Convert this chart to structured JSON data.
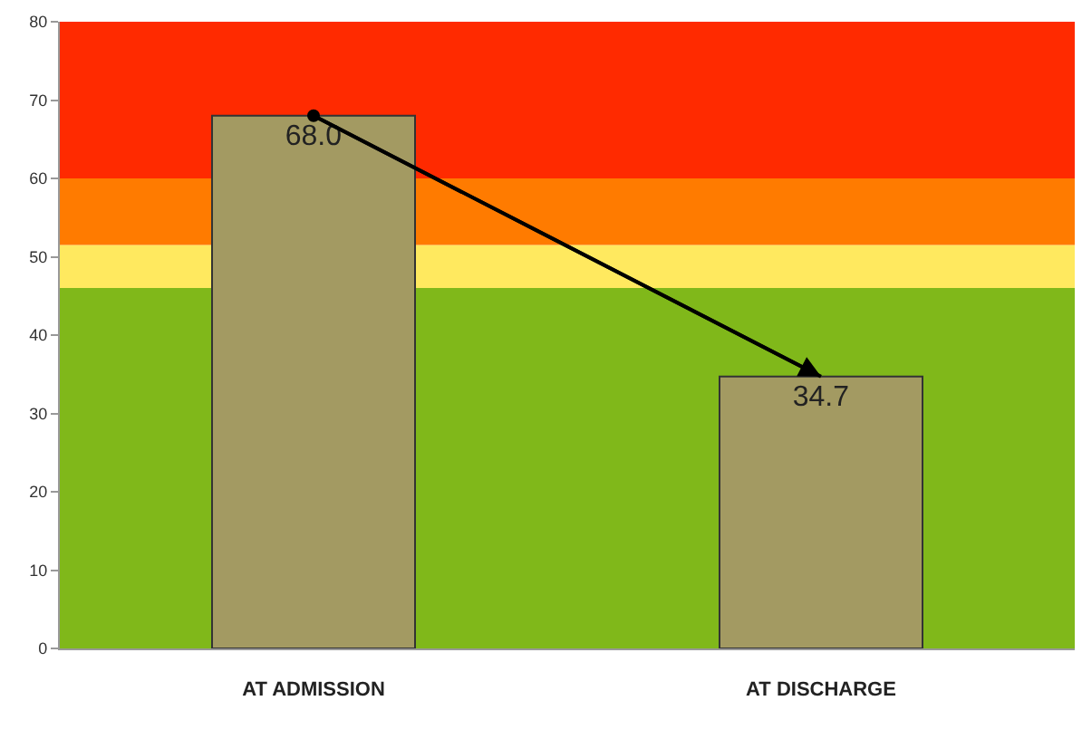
{
  "chart_data": {
    "type": "bar",
    "categories": [
      "AT ADMISSION",
      "AT DISCHARGE"
    ],
    "series": [
      {
        "color": "#a39a62",
        "values": [
          68.0,
          34.7
        ],
        "value_labels": [
          "68.0",
          "34.7"
        ]
      },
      {
        "type": "line",
        "color": "#000000",
        "values": [
          68.0,
          34.7
        ]
      }
    ],
    "ylim": [
      0,
      80
    ],
    "yticks": [
      0,
      10,
      20,
      30,
      40,
      50,
      60,
      70,
      80
    ],
    "bands": [
      {
        "axis": "y",
        "from": 0,
        "to": 46,
        "color": "#80b81a"
      },
      {
        "axis": "y",
        "from": 46,
        "to": 51.5,
        "color": "#ffe95f"
      },
      {
        "axis": "y",
        "from": 51.5,
        "to": 60,
        "color": "#ff7b00"
      },
      {
        "axis": "y",
        "from": 60,
        "to": 80,
        "color": "#ff2a00"
      }
    ],
    "grid": false
  }
}
